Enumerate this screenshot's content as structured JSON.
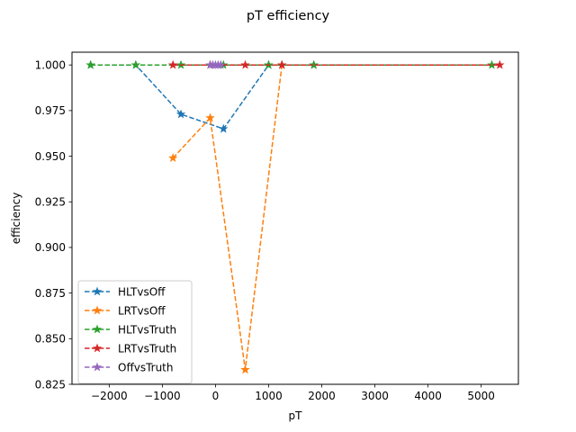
{
  "chart_data": {
    "type": "line",
    "title": "pT efficiency",
    "xlabel": "pT",
    "ylabel": "efficiency",
    "xlim": [
      -2700,
      5700
    ],
    "ylim": [
      0.825,
      1.007
    ],
    "xticks": [
      -2000,
      -1000,
      0,
      1000,
      2000,
      3000,
      4000,
      5000
    ],
    "xtick_labels": [
      "−2000",
      "−1000",
      "0",
      "1000",
      "2000",
      "3000",
      "4000",
      "5000"
    ],
    "yticks": [
      0.825,
      0.85,
      0.875,
      0.9,
      0.925,
      0.95,
      0.975,
      1.0
    ],
    "ytick_labels": [
      "0.825",
      "0.850",
      "0.875",
      "0.900",
      "0.925",
      "0.950",
      "0.975",
      "1.000"
    ],
    "grid": false,
    "legend_position": "lower-left",
    "marker": "star",
    "linestyle": "dashed",
    "series": [
      {
        "name": "HLTvsOff",
        "color": "#1f77b4",
        "x": [
          -2350,
          -1500,
          -650,
          150,
          1000,
          1250,
          1850
        ],
        "y": [
          1.0,
          1.0,
          0.973,
          0.965,
          1.0,
          1.0,
          1.0
        ]
      },
      {
        "name": "LRTvsOff",
        "color": "#ff7f0e",
        "x": [
          -800,
          -100,
          560,
          1250
        ],
        "y": [
          0.949,
          0.971,
          0.833,
          1.0
        ]
      },
      {
        "name": "HLTvsTruth",
        "color": "#2ca02c",
        "x": [
          -2350,
          -1500,
          -650,
          150,
          1000,
          1850,
          5200
        ],
        "y": [
          1.0,
          1.0,
          1.0,
          1.0,
          1.0,
          1.0,
          1.0
        ]
      },
      {
        "name": "LRTvsTruth",
        "color": "#d62728",
        "x": [
          -800,
          -100,
          560,
          1250,
          5350
        ],
        "y": [
          1.0,
          1.0,
          1.0,
          1.0,
          1.0
        ]
      },
      {
        "name": "OffvsTruth",
        "color": "#9467bd",
        "x": [
          -100,
          -50,
          0,
          50,
          100
        ],
        "y": [
          1.0,
          1.0,
          1.0,
          1.0,
          1.0
        ]
      }
    ]
  }
}
